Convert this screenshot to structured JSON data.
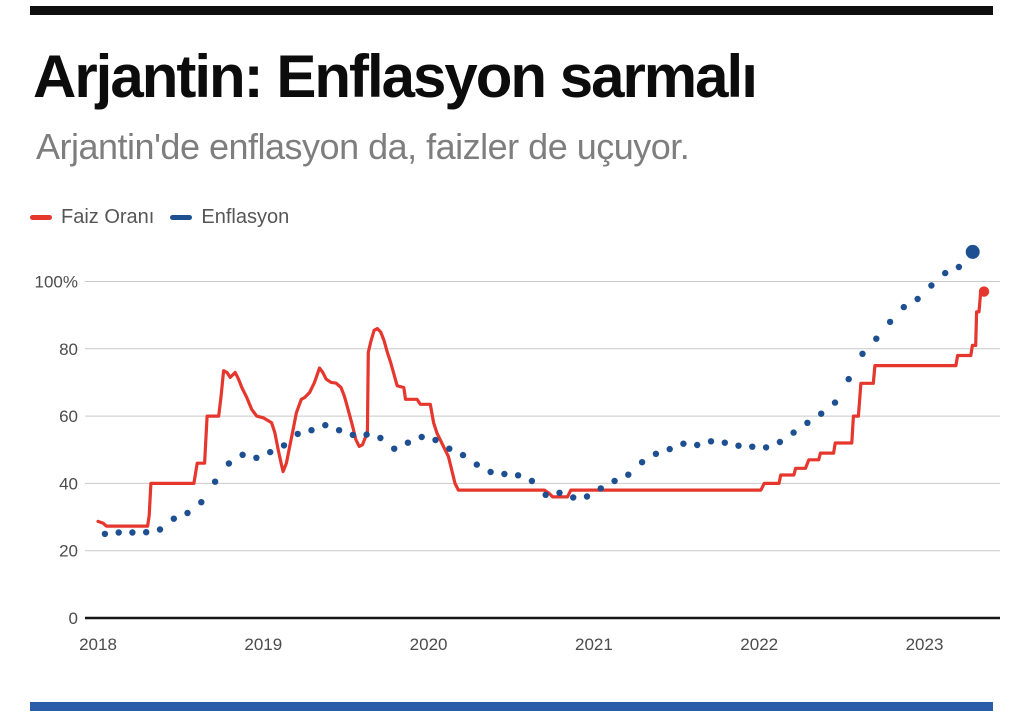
{
  "header": {
    "title": "Arjantin: Enflasyon sarmalı",
    "subtitle": "Arjantin'de enflasyon da, faizler de uçuyor."
  },
  "accents": {
    "top_bar_color": "#0f0f0f",
    "bottom_bar_color": "#2b5ea9"
  },
  "chart_data": {
    "type": "line",
    "title": "Arjantin: Enflasyon sarmalı",
    "subtitle": "Arjantin'de enflasyon da, faizler de uçuyor.",
    "grid": "horizontal",
    "legend_position": "top-left",
    "xlabel": "",
    "ylabel": "",
    "xlim": [
      2017.95,
      2023.5
    ],
    "ylim": [
      0,
      112
    ],
    "xticks": [
      2018,
      2019,
      2020,
      2021,
      2022,
      2023
    ],
    "xtick_labels": [
      "2018",
      "2019",
      "2020",
      "2021",
      "2022",
      "2023"
    ],
    "yticks": [
      0,
      20,
      40,
      60,
      80,
      100
    ],
    "ytick_labels": [
      "0",
      "20",
      "40",
      "60",
      "80",
      "100%"
    ],
    "series": [
      {
        "name": "Faiz Oranı",
        "type": "step-line",
        "color": "#e5372d",
        "unit": "%",
        "points": [
          [
            2018.0,
            28.7
          ],
          [
            2018.03,
            28.2
          ],
          [
            2018.05,
            27.3
          ],
          [
            2018.3,
            27.3
          ],
          [
            2018.31,
            30.5
          ],
          [
            2018.32,
            40
          ],
          [
            2018.58,
            40
          ],
          [
            2018.6,
            46
          ],
          [
            2018.645,
            46
          ],
          [
            2018.66,
            60
          ],
          [
            2018.73,
            60
          ],
          [
            2018.745,
            66
          ],
          [
            2018.76,
            73.5
          ],
          [
            2018.78,
            73
          ],
          [
            2018.8,
            71.5
          ],
          [
            2018.83,
            73
          ],
          [
            2018.85,
            71
          ],
          [
            2018.87,
            68.5
          ],
          [
            2018.9,
            65.5
          ],
          [
            2018.93,
            62
          ],
          [
            2018.96,
            60
          ],
          [
            2019.0,
            59.5
          ],
          [
            2019.05,
            58
          ],
          [
            2019.07,
            55
          ],
          [
            2019.09,
            50
          ],
          [
            2019.11,
            45.5
          ],
          [
            2019.12,
            43.5
          ],
          [
            2019.14,
            46
          ],
          [
            2019.16,
            51
          ],
          [
            2019.18,
            56
          ],
          [
            2019.2,
            61
          ],
          [
            2019.23,
            65
          ],
          [
            2019.25,
            65.5
          ],
          [
            2019.28,
            67
          ],
          [
            2019.31,
            70
          ],
          [
            2019.34,
            74.3
          ],
          [
            2019.36,
            73
          ],
          [
            2019.38,
            71
          ],
          [
            2019.41,
            70
          ],
          [
            2019.44,
            69.8
          ],
          [
            2019.47,
            68.5
          ],
          [
            2019.49,
            66
          ],
          [
            2019.51,
            62.5
          ],
          [
            2019.54,
            57
          ],
          [
            2019.56,
            53
          ],
          [
            2019.58,
            51
          ],
          [
            2019.6,
            51.5
          ],
          [
            2019.62,
            54
          ],
          [
            2019.63,
            55
          ],
          [
            2019.635,
            79
          ],
          [
            2019.65,
            82
          ],
          [
            2019.67,
            85.5
          ],
          [
            2019.69,
            86
          ],
          [
            2019.71,
            85
          ],
          [
            2019.73,
            82.5
          ],
          [
            2019.75,
            79
          ],
          [
            2019.77,
            76
          ],
          [
            2019.79,
            72.5
          ],
          [
            2019.81,
            69
          ],
          [
            2019.85,
            68.5
          ],
          [
            2019.86,
            65
          ],
          [
            2019.93,
            65
          ],
          [
            2019.95,
            63.5
          ],
          [
            2020.01,
            63.5
          ],
          [
            2020.03,
            58
          ],
          [
            2020.05,
            55
          ],
          [
            2020.08,
            52
          ],
          [
            2020.1,
            50
          ],
          [
            2020.12,
            48
          ],
          [
            2020.14,
            44
          ],
          [
            2020.16,
            40
          ],
          [
            2020.18,
            38
          ],
          [
            2020.7,
            38
          ],
          [
            2020.73,
            37
          ],
          [
            2020.75,
            36
          ],
          [
            2020.84,
            36
          ],
          [
            2020.86,
            38
          ],
          [
            2022.01,
            38
          ],
          [
            2022.03,
            40
          ],
          [
            2022.12,
            40
          ],
          [
            2022.13,
            42.5
          ],
          [
            2022.21,
            42.5
          ],
          [
            2022.22,
            44.5
          ],
          [
            2022.28,
            44.5
          ],
          [
            2022.3,
            47
          ],
          [
            2022.36,
            47
          ],
          [
            2022.37,
            49
          ],
          [
            2022.45,
            49
          ],
          [
            2022.46,
            52
          ],
          [
            2022.56,
            52
          ],
          [
            2022.57,
            60
          ],
          [
            2022.6,
            60
          ],
          [
            2022.615,
            69.75
          ],
          [
            2022.69,
            69.75
          ],
          [
            2022.7,
            75
          ],
          [
            2023.19,
            75
          ],
          [
            2023.2,
            78
          ],
          [
            2023.28,
            78
          ],
          [
            2023.29,
            81
          ],
          [
            2023.31,
            81
          ],
          [
            2023.315,
            91
          ],
          [
            2023.33,
            91
          ],
          [
            2023.34,
            97
          ],
          [
            2023.36,
            97
          ]
        ],
        "last_value": 97,
        "highlight_last": true
      },
      {
        "name": "Enflasyon",
        "type": "scatter",
        "color": "#1d4f91",
        "unit": "%",
        "frequency": "monthly",
        "start": "2018-01",
        "values": [
          25.0,
          25.4,
          25.4,
          25.5,
          26.3,
          29.5,
          31.2,
          34.4,
          40.5,
          45.9,
          48.5,
          47.6,
          49.3,
          51.3,
          54.7,
          55.8,
          57.3,
          55.8,
          54.4,
          54.5,
          53.5,
          50.3,
          52.1,
          53.8,
          52.9,
          50.3,
          48.4,
          45.6,
          43.4,
          42.8,
          42.4,
          40.7,
          36.6,
          37.2,
          35.8,
          36.1,
          38.5,
          40.7,
          42.6,
          46.3,
          48.8,
          50.2,
          51.8,
          51.4,
          52.5,
          52.1,
          51.2,
          50.9,
          50.7,
          52.3,
          55.1,
          58.0,
          60.7,
          64.0,
          71.0,
          78.5,
          83.0,
          88.0,
          92.4,
          94.8,
          98.8,
          102.5,
          104.3,
          108.8
        ],
        "last_value": 108.8,
        "highlight_last": true
      }
    ]
  }
}
